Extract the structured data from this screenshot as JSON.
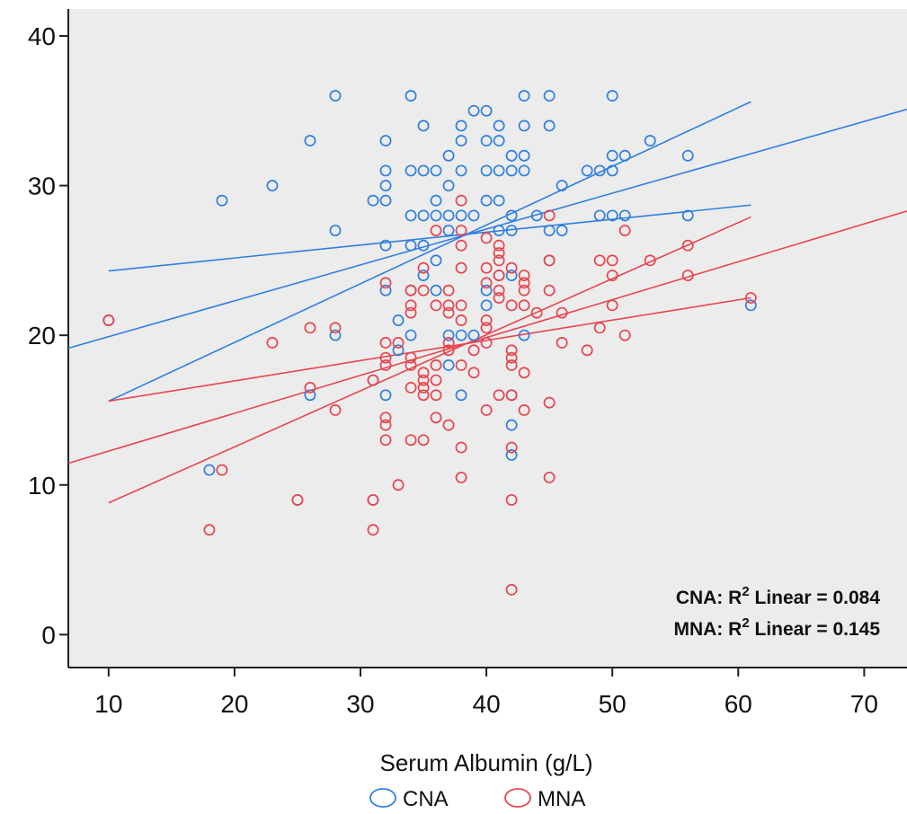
{
  "colors": {
    "cna": "#2f7fe0",
    "mna": "#e8454f",
    "plot_bg": "#ececec"
  },
  "chart_data": {
    "type": "scatter",
    "xlabel": "Serum Albumin (g/L)",
    "ylabel": "",
    "xlim": [
      6.8,
      73.4
    ],
    "ylim": [
      -2.2,
      41.8
    ],
    "xticks": [
      10,
      20,
      30,
      40,
      50,
      60,
      70
    ],
    "yticks": [
      0,
      10,
      20,
      30,
      40
    ],
    "legend_position": "bottom",
    "annotations": [
      {
        "group": "CNA",
        "prefix": "CNA: R",
        "sup": "2",
        "suffix": " Linear = 0.084"
      },
      {
        "group": "MNA",
        "prefix": "MNA: R",
        "sup": "2",
        "suffix": " Linear = 0.145"
      }
    ],
    "series": [
      {
        "name": "CNA",
        "color": "#2f7fe0",
        "points": [
          [
            10,
            21
          ],
          [
            18,
            11
          ],
          [
            19,
            29
          ],
          [
            23,
            30
          ],
          [
            25,
            9
          ],
          [
            26,
            33
          ],
          [
            26,
            16
          ],
          [
            28,
            36
          ],
          [
            28,
            27
          ],
          [
            28,
            20
          ],
          [
            31,
            29
          ],
          [
            31,
            17
          ],
          [
            31,
            9
          ],
          [
            32,
            33
          ],
          [
            32,
            31
          ],
          [
            32,
            30
          ],
          [
            32,
            29
          ],
          [
            32,
            26
          ],
          [
            32,
            23
          ],
          [
            32,
            16
          ],
          [
            33,
            19
          ],
          [
            33,
            21
          ],
          [
            34,
            36
          ],
          [
            34,
            31
          ],
          [
            34,
            28
          ],
          [
            34,
            26
          ],
          [
            34,
            23
          ],
          [
            34,
            20
          ],
          [
            35,
            34
          ],
          [
            35,
            31
          ],
          [
            35,
            28
          ],
          [
            35,
            26
          ],
          [
            35,
            24
          ],
          [
            36,
            31
          ],
          [
            36,
            29
          ],
          [
            36,
            28
          ],
          [
            36,
            25
          ],
          [
            36,
            23
          ],
          [
            37,
            32
          ],
          [
            37,
            30
          ],
          [
            37,
            28
          ],
          [
            37,
            27
          ],
          [
            37,
            20
          ],
          [
            37,
            18
          ],
          [
            38,
            34
          ],
          [
            38,
            33
          ],
          [
            38,
            31
          ],
          [
            38,
            28
          ],
          [
            38,
            20
          ],
          [
            38,
            16
          ],
          [
            39,
            35
          ],
          [
            39,
            28
          ],
          [
            39,
            20
          ],
          [
            40,
            35
          ],
          [
            40,
            33
          ],
          [
            40,
            31
          ],
          [
            40,
            29
          ],
          [
            40,
            23
          ],
          [
            40,
            22
          ],
          [
            41,
            34
          ],
          [
            41,
            33
          ],
          [
            41,
            31
          ],
          [
            41,
            29
          ],
          [
            41,
            27
          ],
          [
            41,
            24
          ],
          [
            42,
            32
          ],
          [
            42,
            31
          ],
          [
            42,
            28
          ],
          [
            42,
            27
          ],
          [
            42,
            24
          ],
          [
            42,
            16
          ],
          [
            42,
            14
          ],
          [
            42,
            12
          ],
          [
            43,
            36
          ],
          [
            43,
            34
          ],
          [
            43,
            32
          ],
          [
            43,
            31
          ],
          [
            43,
            20
          ],
          [
            44,
            28
          ],
          [
            45,
            36
          ],
          [
            45,
            34
          ],
          [
            45,
            27
          ],
          [
            45,
            25
          ],
          [
            46,
            30
          ],
          [
            46,
            27
          ],
          [
            48,
            31
          ],
          [
            49,
            31
          ],
          [
            49,
            28
          ],
          [
            50,
            36
          ],
          [
            50,
            32
          ],
          [
            50,
            31
          ],
          [
            50,
            28
          ],
          [
            51,
            32
          ],
          [
            51,
            28
          ],
          [
            53,
            33
          ],
          [
            56,
            32
          ],
          [
            56,
            28
          ],
          [
            61,
            22
          ]
        ],
        "fit_line": {
          "x": [
            6.8,
            73.4
          ],
          "y": [
            19.14,
            35.1
          ]
        },
        "ci_lower": {
          "x": [
            10,
            61
          ],
          "y": [
            24.3,
            28.7
          ]
        },
        "ci_upper": {
          "x": [
            10,
            61
          ],
          "y": [
            15.6,
            35.6
          ]
        }
      },
      {
        "name": "MNA",
        "color": "#e8454f",
        "points": [
          [
            10,
            21
          ],
          [
            18,
            7
          ],
          [
            19,
            11
          ],
          [
            23,
            19.5
          ],
          [
            25,
            9
          ],
          [
            26,
            20.5
          ],
          [
            26,
            16.5
          ],
          [
            28,
            20.5
          ],
          [
            28,
            15
          ],
          [
            31,
            17
          ],
          [
            31,
            9
          ],
          [
            31,
            7
          ],
          [
            32,
            23.5
          ],
          [
            32,
            19.5
          ],
          [
            32,
            18.5
          ],
          [
            32,
            18
          ],
          [
            32,
            14.5
          ],
          [
            32,
            14
          ],
          [
            32,
            13
          ],
          [
            33,
            19.5
          ],
          [
            33,
            10
          ],
          [
            34,
            23
          ],
          [
            34,
            22
          ],
          [
            34,
            21.5
          ],
          [
            34,
            18.5
          ],
          [
            34,
            18
          ],
          [
            34,
            16.5
          ],
          [
            34,
            13
          ],
          [
            35,
            24.5
          ],
          [
            35,
            23
          ],
          [
            35,
            17.5
          ],
          [
            35,
            17
          ],
          [
            35,
            16.5
          ],
          [
            35,
            16
          ],
          [
            35,
            13
          ],
          [
            36,
            27
          ],
          [
            36,
            22
          ],
          [
            36,
            18
          ],
          [
            36,
            17
          ],
          [
            36,
            16
          ],
          [
            36,
            14.5
          ],
          [
            37,
            23
          ],
          [
            37,
            22
          ],
          [
            37,
            21.5
          ],
          [
            37,
            19.5
          ],
          [
            37,
            19
          ],
          [
            37,
            14
          ],
          [
            38,
            29
          ],
          [
            38,
            27
          ],
          [
            38,
            26
          ],
          [
            38,
            24.5
          ],
          [
            38,
            22
          ],
          [
            38,
            21
          ],
          [
            38,
            18
          ],
          [
            38,
            12.5
          ],
          [
            38,
            10.5
          ],
          [
            39,
            19
          ],
          [
            39,
            17.5
          ],
          [
            40,
            26.5
          ],
          [
            40,
            24.5
          ],
          [
            40,
            23.5
          ],
          [
            40,
            21
          ],
          [
            40,
            20.5
          ],
          [
            40,
            19.5
          ],
          [
            40,
            15
          ],
          [
            41,
            26
          ],
          [
            41,
            25.5
          ],
          [
            41,
            25
          ],
          [
            41,
            24
          ],
          [
            41,
            23
          ],
          [
            41,
            22.5
          ],
          [
            41,
            16
          ],
          [
            42,
            24.5
          ],
          [
            42,
            22
          ],
          [
            42,
            19
          ],
          [
            42,
            18.5
          ],
          [
            42,
            18
          ],
          [
            42,
            16
          ],
          [
            42,
            12.5
          ],
          [
            42,
            9
          ],
          [
            42,
            3
          ],
          [
            43,
            24
          ],
          [
            43,
            23.5
          ],
          [
            43,
            23
          ],
          [
            43,
            22
          ],
          [
            43,
            17.5
          ],
          [
            43,
            15
          ],
          [
            44,
            21.5
          ],
          [
            45,
            28
          ],
          [
            45,
            25
          ],
          [
            45,
            23
          ],
          [
            45,
            15.5
          ],
          [
            45,
            10.5
          ],
          [
            46,
            21.5
          ],
          [
            46,
            19.5
          ],
          [
            48,
            19
          ],
          [
            49,
            25
          ],
          [
            49,
            20.5
          ],
          [
            50,
            25
          ],
          [
            50,
            24
          ],
          [
            50,
            22
          ],
          [
            51,
            27
          ],
          [
            51,
            20
          ],
          [
            53,
            25
          ],
          [
            56,
            26
          ],
          [
            56,
            24
          ],
          [
            61,
            22.5
          ]
        ],
        "fit_line": {
          "x": [
            6.8,
            73.4
          ],
          "y": [
            11.45,
            28.3
          ]
        },
        "ci_lower": {
          "x": [
            10,
            61
          ],
          "y": [
            15.6,
            22.5
          ]
        },
        "ci_upper": {
          "x": [
            10,
            61
          ],
          "y": [
            8.8,
            27.9
          ]
        }
      }
    ]
  }
}
